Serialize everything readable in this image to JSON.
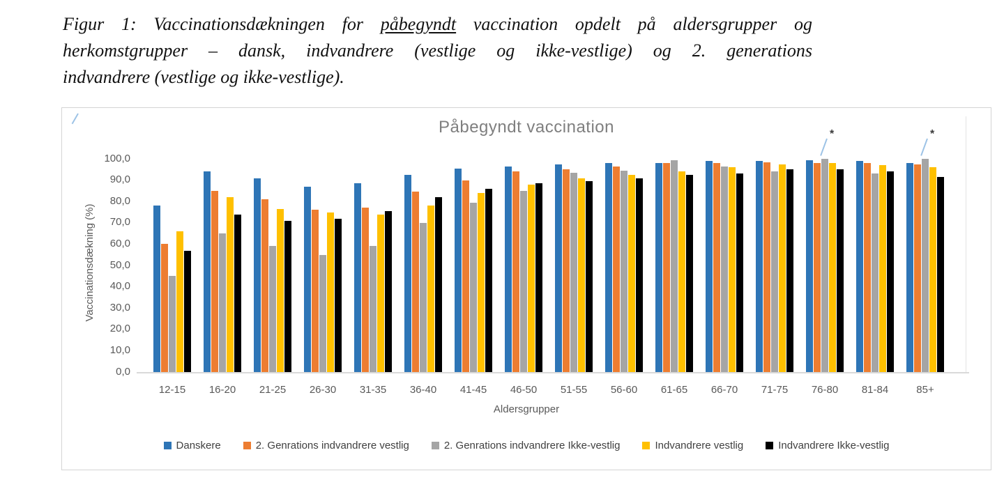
{
  "caption": {
    "line1_pre": "Figur 1: Vaccinationsdækningen for ",
    "line1_underline": "påbegyndt",
    "line1_post": " vaccination opdelt på aldersgrupper og",
    "line2": "herkomstgrupper – dansk, indvandrere (vestlige og ikke-vestlige) og 2. generations",
    "line3": "indvandrere (vestlige og ikke-vestlige)."
  },
  "chart_data": {
    "type": "bar",
    "title": "Påbegyndt vaccination",
    "xlabel": "Aldersgrupper",
    "ylabel": "Vaccinationsdækning (%)",
    "ylim": [
      0,
      100
    ],
    "ytick_labels": [
      "100,0",
      "90,0",
      "80,0",
      "70,0",
      "60,0",
      "50,0",
      "40,0",
      "30,0",
      "20,0",
      "10,0",
      "0,0"
    ],
    "grid": false,
    "legend_position": "bottom",
    "categories": [
      "12-15",
      "16-20",
      "21-25",
      "26-30",
      "31-35",
      "36-40",
      "41-45",
      "46-50",
      "51-55",
      "56-60",
      "61-65",
      "66-70",
      "71-75",
      "76-80",
      "81-84",
      "85+"
    ],
    "series": [
      {
        "name": "Danskere",
        "color": "#2E75B6",
        "values": [
          78,
          94,
          91,
          87,
          88.5,
          92.5,
          95.5,
          96.5,
          97.5,
          98,
          98,
          99,
          99,
          99.5,
          99,
          98
        ]
      },
      {
        "name": "2. Genrations indvandrere vestlig",
        "color": "#ED7D31",
        "values": [
          60,
          85,
          81,
          76,
          77,
          84.5,
          90,
          94,
          95,
          96.5,
          98,
          98,
          98.5,
          98,
          98,
          97.5
        ]
      },
      {
        "name": "2. Genrations indvandrere Ikke-vestlig",
        "color": "#A5A5A5",
        "values": [
          45,
          65,
          59,
          55,
          59,
          70,
          79.5,
          85,
          93.5,
          94.5,
          99.5,
          96.5,
          94,
          100,
          93,
          100
        ]
      },
      {
        "name": "Indvandrere vestlig",
        "color": "#FFC000",
        "values": [
          66,
          82,
          76.5,
          75,
          74,
          78,
          84,
          88,
          91,
          92.5,
          94,
          96,
          97.5,
          98,
          97,
          96
        ]
      },
      {
        "name": "Indvandrere Ikke-vestlig",
        "color": "#000000",
        "values": [
          57,
          74,
          71,
          72,
          75.5,
          82,
          86,
          88.5,
          89.5,
          91,
          92.5,
          93,
          95,
          95,
          94,
          91.5
        ]
      }
    ],
    "annotations": [
      {
        "text": "*",
        "series_index": 2,
        "category": "76-80"
      },
      {
        "text": "*",
        "series_index": 2,
        "category": "85+"
      }
    ],
    "colors": {
      "axis_text": "#595959",
      "title_text": "#7F7F7F",
      "axis_line": "#D9D9D9",
      "leader_line": "#9DC3E6"
    }
  }
}
